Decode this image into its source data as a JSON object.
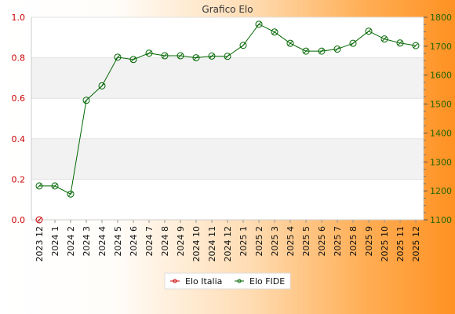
{
  "chart_data": {
    "type": "line",
    "title": "Grafico Elo",
    "categories": [
      "2023 12",
      "2024 1",
      "2024 2",
      "2024 3",
      "2024 4",
      "2024 5",
      "2024 6",
      "2024 7",
      "2024 8",
      "2024 9",
      "2024 10",
      "2024 11",
      "2024 12",
      "2025 1",
      "2025 2",
      "2025 3",
      "2025 4",
      "2025 5",
      "2025 6",
      "2025 7",
      "2025 8",
      "2025 9",
      "2025 10",
      "2025 11",
      "2025 12"
    ],
    "y_left": {
      "min": 0.0,
      "max": 1.0,
      "ticks": [
        "0.0",
        "0.2",
        "0.4",
        "0.6",
        "0.8",
        "1.0"
      ],
      "color": "#cc0000"
    },
    "y_right": {
      "min": 1100,
      "max": 1800,
      "ticks": [
        "1100",
        "1200",
        "1300",
        "1400",
        "1500",
        "1600",
        "1700",
        "1800"
      ],
      "color": "#226600"
    },
    "grid": "horizontal bands",
    "legend_position": "bottom-center",
    "series": [
      {
        "name": "Elo Italia",
        "axis": "left",
        "color": "#cc0000",
        "values": [
          0,
          null,
          null,
          null,
          null,
          null,
          null,
          null,
          null,
          null,
          null,
          null,
          null,
          null,
          null,
          null,
          null,
          null,
          null,
          null,
          null,
          null,
          null,
          null,
          null
        ]
      },
      {
        "name": "Elo FIDE",
        "axis": "right",
        "color": "#006600",
        "values": [
          1217,
          1217,
          1189,
          1513,
          1563,
          1662,
          1654,
          1676,
          1667,
          1667,
          1660,
          1666,
          1665,
          1703,
          1776,
          1749,
          1710,
          1683,
          1683,
          1690,
          1710,
          1752,
          1725,
          1711,
          1702
        ]
      }
    ]
  }
}
